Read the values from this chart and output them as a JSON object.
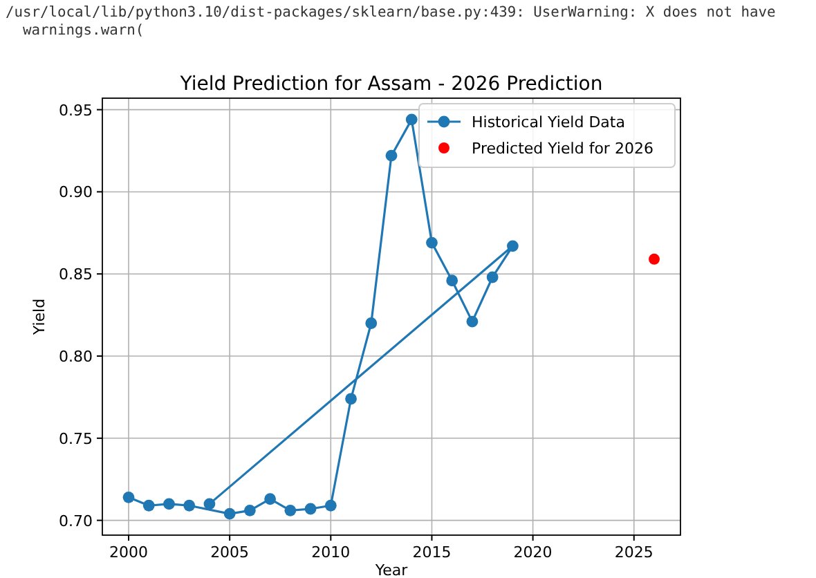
{
  "chart_data": {
    "type": "line",
    "title": "Yield Prediction for Assam - 2026 Prediction",
    "xlabel": "Year",
    "ylabel": "Yield",
    "annotations": [
      "/usr/local/lib/python3.10/dist-packages/sklearn/base.py:439: UserWarning: X does not have",
      "  warnings.warn("
    ],
    "series": [
      {
        "name": "Historical Yield Data",
        "color": "#1f77b4",
        "marker": "circle",
        "x": [
          2000,
          2001,
          2002,
          2003,
          2005,
          2006,
          2007,
          2008,
          2009,
          2010,
          2011,
          2012,
          2013,
          2014,
          2015,
          2016,
          2017,
          2018,
          2019,
          2004
        ],
        "values": [
          0.714,
          0.709,
          0.71,
          0.709,
          0.704,
          0.706,
          0.713,
          0.706,
          0.707,
          0.709,
          0.774,
          0.82,
          0.922,
          0.944,
          0.869,
          0.846,
          0.821,
          0.848,
          0.867,
          0.71
        ]
      },
      {
        "name": "Predicted Yield for 2026",
        "type": "scatter",
        "color": "#ff0000",
        "marker": "circle",
        "x": [
          2026
        ],
        "values": [
          0.859
        ]
      }
    ],
    "xlim": [
      1998.7,
      2027.3
    ],
    "ylim": [
      0.691,
      0.957
    ],
    "xticks": [
      2000,
      2005,
      2010,
      2015,
      2020,
      2025
    ],
    "yticks": [
      {
        "value": 0.7,
        "label": "0.70"
      },
      {
        "value": 0.75,
        "label": "0.75"
      },
      {
        "value": 0.8,
        "label": "0.80"
      },
      {
        "value": 0.85,
        "label": "0.85"
      },
      {
        "value": 0.9,
        "label": "0.90"
      },
      {
        "value": 0.95,
        "label": "0.95"
      }
    ],
    "grid": true,
    "legend": "top right"
  }
}
